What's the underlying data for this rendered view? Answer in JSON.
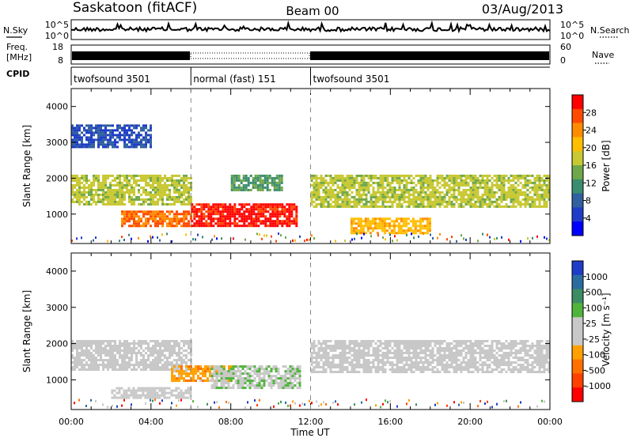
{
  "header": {
    "station": "Saskatoon (fitACF)",
    "beam": "Beam 00",
    "date": "03/Aug/2013"
  },
  "top_panels": {
    "nsky_label": "N.Sky",
    "nsearch_label": "N.Search",
    "nsky_ticks": [
      "10^5",
      "10^0"
    ],
    "nsearch_ticks": [
      "10^5",
      "10^0"
    ],
    "freq_label_1": "Freq.",
    "freq_label_2": "[MHz]",
    "freq_ticks": [
      "18",
      "8"
    ],
    "nave_label": "Nave",
    "nave_ticks": [
      "60",
      "0"
    ],
    "cpid_label": "CPID",
    "cpid_segments": [
      {
        "label": "twofsound 3501",
        "start": 0,
        "end": 6
      },
      {
        "label": "normal (fast) 151",
        "start": 6,
        "end": 12
      },
      {
        "label": "twofsound 3501",
        "start": 12,
        "end": 24
      }
    ]
  },
  "colorbars": {
    "power": {
      "label": "Power [dB]",
      "ticks": [
        "28",
        "24",
        "20",
        "16",
        "12",
        "8",
        "4"
      ],
      "colors": [
        "#ff0000",
        "#ff4a00",
        "#ff8c00",
        "#ffbe00",
        "#c8c832",
        "#6fa84a",
        "#3a8c6e",
        "#3060a0",
        "#1e3cc8",
        "#0000ff"
      ]
    },
    "velocity": {
      "label": "Velocity [m s⁻¹]",
      "ticks": [
        "1000",
        "500",
        "100",
        "25",
        "-25",
        "-100",
        "-500",
        "-1000"
      ],
      "colors": [
        "#1e3cc8",
        "#2a6ca0",
        "#3c8c64",
        "#50b43c",
        "#c8c8c8",
        "#c8c8c8",
        "#ffa000",
        "#ff7000",
        "#ff4000",
        "#ff0000"
      ]
    }
  },
  "axes": {
    "ylabel": "Slant Range [km]",
    "xlabel": "Time UT"
  },
  "chart_data": [
    {
      "type": "heatmap",
      "name": "power",
      "x_ticks": [
        "00:00",
        "04:00",
        "08:00",
        "12:00",
        "16:00",
        "20:00",
        "00:00"
      ],
      "x_range_hours": [
        0,
        24
      ],
      "y_ticks": [
        "4000",
        "3000",
        "2000",
        "1000"
      ],
      "ylim": [
        180,
        4500
      ],
      "zlim": [
        0,
        30
      ],
      "bands": [
        {
          "t0": 0,
          "t1": 6,
          "r0": 1300,
          "r1": 2100,
          "value": 16
        },
        {
          "t0": 2.5,
          "t1": 6,
          "r0": 700,
          "r1": 1100,
          "value": 24
        },
        {
          "t0": 6,
          "t1": 11.3,
          "r0": 700,
          "r1": 1300,
          "value": 28
        },
        {
          "t0": 8,
          "t1": 10.5,
          "r0": 1700,
          "r1": 2100,
          "value": 12
        },
        {
          "t0": 12,
          "t1": 24,
          "r0": 1200,
          "r1": 2100,
          "value": 16
        },
        {
          "t0": 14,
          "t1": 18,
          "r0": 500,
          "r1": 900,
          "value": 20
        },
        {
          "t0": 0,
          "t1": 4,
          "r0": 2900,
          "r1": 3500,
          "value": 6
        }
      ]
    },
    {
      "type": "heatmap",
      "name": "velocity",
      "x_ticks": [
        "00:00",
        "04:00",
        "08:00",
        "12:00",
        "16:00",
        "20:00",
        "00:00"
      ],
      "x_range_hours": [
        0,
        24
      ],
      "y_ticks": [
        "4000",
        "3000",
        "2000",
        "1000"
      ],
      "ylim": [
        180,
        4500
      ],
      "zlim": [
        -1000,
        1000
      ],
      "bands": [
        {
          "t0": 0,
          "t1": 6,
          "r0": 1300,
          "r1": 2100,
          "value": 0
        },
        {
          "t0": 5,
          "t1": 8,
          "r0": 1000,
          "r1": 1400,
          "value": -300
        },
        {
          "t0": 7,
          "t1": 11.5,
          "r0": 800,
          "r1": 1400,
          "value": 150
        },
        {
          "t0": 12,
          "t1": 24,
          "r0": 1200,
          "r1": 2100,
          "value": 0
        },
        {
          "t0": 2,
          "t1": 6,
          "r0": 500,
          "r1": 800,
          "value": -80
        }
      ]
    }
  ]
}
